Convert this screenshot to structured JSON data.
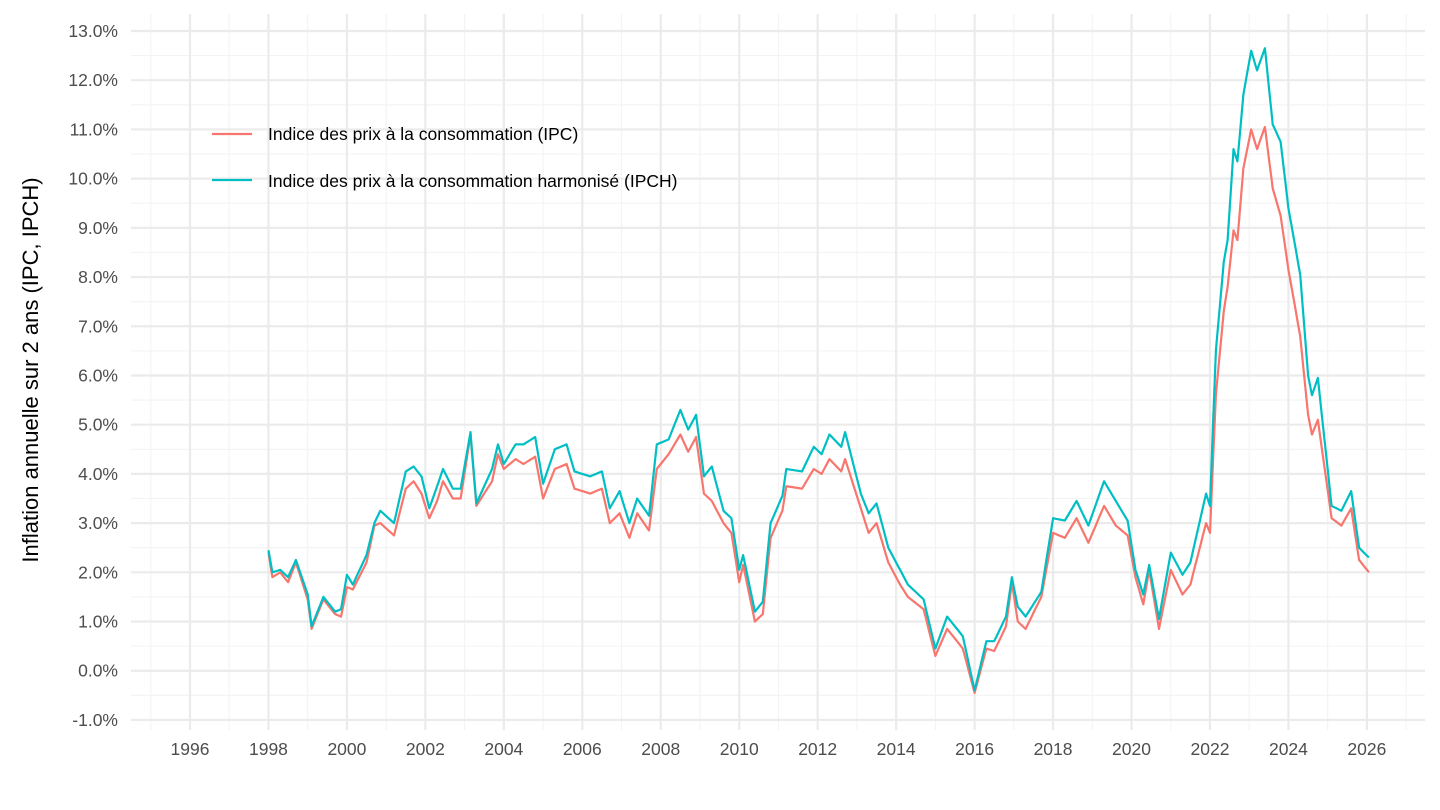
{
  "chart_data": {
    "type": "line",
    "title": "",
    "xlabel": "",
    "ylabel": "Inflation annuelle sur 2 ans (IPC, IPCH)",
    "xlim": [
      1994.5,
      2027.5
    ],
    "ylim": [
      -1.0,
      13.0
    ],
    "grid": true,
    "x_ticks": [
      "1996",
      "1998",
      "2000",
      "2002",
      "2004",
      "2006",
      "2008",
      "2010",
      "2012",
      "2014",
      "2016",
      "2018",
      "2020",
      "2022",
      "2024",
      "2026"
    ],
    "y_ticks": [
      "-1.0%",
      "0.0%",
      "1.0%",
      "2.0%",
      "3.0%",
      "4.0%",
      "5.0%",
      "6.0%",
      "7.0%",
      "8.0%",
      "9.0%",
      "10.0%",
      "11.0%",
      "12.0%",
      "13.0%"
    ],
    "legend_position": "top-left",
    "x_unit": "decimal year",
    "y_unit": "percent",
    "series": [
      {
        "name": "Indice des prix à la consommation (IPC)",
        "color": "#F8766D",
        "points": [
          [
            1998.0,
            2.4
          ],
          [
            1998.1,
            1.9
          ],
          [
            1998.3,
            2.0
          ],
          [
            1998.5,
            1.8
          ],
          [
            1998.7,
            2.2
          ],
          [
            1999.0,
            1.45
          ],
          [
            1999.1,
            0.85
          ],
          [
            1999.4,
            1.45
          ],
          [
            1999.7,
            1.15
          ],
          [
            1999.85,
            1.1
          ],
          [
            2000.0,
            1.7
          ],
          [
            2000.15,
            1.65
          ],
          [
            2000.5,
            2.2
          ],
          [
            2000.7,
            2.95
          ],
          [
            2000.85,
            3.0
          ],
          [
            2001.2,
            2.75
          ],
          [
            2001.5,
            3.7
          ],
          [
            2001.7,
            3.85
          ],
          [
            2001.9,
            3.6
          ],
          [
            2002.1,
            3.1
          ],
          [
            2002.3,
            3.45
          ],
          [
            2002.45,
            3.85
          ],
          [
            2002.7,
            3.5
          ],
          [
            2002.9,
            3.5
          ],
          [
            2003.15,
            4.8
          ],
          [
            2003.3,
            3.35
          ],
          [
            2003.7,
            3.85
          ],
          [
            2003.85,
            4.4
          ],
          [
            2004.0,
            4.1
          ],
          [
            2004.3,
            4.3
          ],
          [
            2004.5,
            4.2
          ],
          [
            2004.8,
            4.35
          ],
          [
            2005.0,
            3.5
          ],
          [
            2005.3,
            4.1
          ],
          [
            2005.6,
            4.2
          ],
          [
            2005.8,
            3.7
          ],
          [
            2006.2,
            3.6
          ],
          [
            2006.5,
            3.7
          ],
          [
            2006.7,
            3.0
          ],
          [
            2006.95,
            3.2
          ],
          [
            2007.2,
            2.7
          ],
          [
            2007.4,
            3.2
          ],
          [
            2007.7,
            2.85
          ],
          [
            2007.9,
            4.1
          ],
          [
            2008.2,
            4.4
          ],
          [
            2008.5,
            4.8
          ],
          [
            2008.7,
            4.45
          ],
          [
            2008.9,
            4.75
          ],
          [
            2009.1,
            3.6
          ],
          [
            2009.3,
            3.45
          ],
          [
            2009.6,
            3.0
          ],
          [
            2009.8,
            2.8
          ],
          [
            2010.0,
            1.8
          ],
          [
            2010.1,
            2.15
          ],
          [
            2010.4,
            1.0
          ],
          [
            2010.6,
            1.15
          ],
          [
            2010.8,
            2.7
          ],
          [
            2011.1,
            3.25
          ],
          [
            2011.2,
            3.75
          ],
          [
            2011.6,
            3.7
          ],
          [
            2011.9,
            4.1
          ],
          [
            2012.1,
            4.0
          ],
          [
            2012.3,
            4.3
          ],
          [
            2012.6,
            4.05
          ],
          [
            2012.7,
            4.3
          ],
          [
            2013.1,
            3.3
          ],
          [
            2013.3,
            2.8
          ],
          [
            2013.5,
            3.0
          ],
          [
            2013.8,
            2.2
          ],
          [
            2014.1,
            1.75
          ],
          [
            2014.3,
            1.5
          ],
          [
            2014.7,
            1.25
          ],
          [
            2015.0,
            0.3
          ],
          [
            2015.3,
            0.85
          ],
          [
            2015.7,
            0.45
          ],
          [
            2016.0,
            -0.45
          ],
          [
            2016.3,
            0.45
          ],
          [
            2016.5,
            0.4
          ],
          [
            2016.8,
            0.9
          ],
          [
            2016.95,
            1.8
          ],
          [
            2017.1,
            1.0
          ],
          [
            2017.3,
            0.85
          ],
          [
            2017.7,
            1.5
          ],
          [
            2018.0,
            2.8
          ],
          [
            2018.3,
            2.7
          ],
          [
            2018.6,
            3.1
          ],
          [
            2018.9,
            2.6
          ],
          [
            2019.3,
            3.35
          ],
          [
            2019.6,
            2.95
          ],
          [
            2019.9,
            2.75
          ],
          [
            2020.1,
            1.9
          ],
          [
            2020.3,
            1.35
          ],
          [
            2020.45,
            2.05
          ],
          [
            2020.7,
            0.85
          ],
          [
            2021.0,
            2.05
          ],
          [
            2021.3,
            1.55
          ],
          [
            2021.5,
            1.75
          ],
          [
            2021.9,
            3.0
          ],
          [
            2022.0,
            2.8
          ],
          [
            2022.15,
            5.6
          ],
          [
            2022.35,
            7.3
          ],
          [
            2022.45,
            7.8
          ],
          [
            2022.6,
            8.95
          ],
          [
            2022.7,
            8.75
          ],
          [
            2022.85,
            10.2
          ],
          [
            2023.05,
            11.0
          ],
          [
            2023.2,
            10.6
          ],
          [
            2023.4,
            11.05
          ],
          [
            2023.6,
            9.8
          ],
          [
            2023.8,
            9.25
          ],
          [
            2024.0,
            8.15
          ],
          [
            2024.3,
            6.8
          ],
          [
            2024.5,
            5.2
          ],
          [
            2024.6,
            4.8
          ],
          [
            2024.75,
            5.1
          ],
          [
            2025.1,
            3.1
          ],
          [
            2025.35,
            2.95
          ],
          [
            2025.6,
            3.3
          ],
          [
            2025.8,
            2.25
          ],
          [
            2026.05,
            2.0
          ]
        ]
      },
      {
        "name": "Indice des prix à la consommation harmonisé (IPCH)",
        "color": "#00BFC4",
        "points": [
          [
            1998.0,
            2.45
          ],
          [
            1998.1,
            2.0
          ],
          [
            1998.3,
            2.05
          ],
          [
            1998.5,
            1.9
          ],
          [
            1998.7,
            2.25
          ],
          [
            1999.0,
            1.55
          ],
          [
            1999.1,
            0.9
          ],
          [
            1999.4,
            1.5
          ],
          [
            1999.7,
            1.2
          ],
          [
            1999.85,
            1.25
          ],
          [
            2000.0,
            1.95
          ],
          [
            2000.15,
            1.75
          ],
          [
            2000.5,
            2.35
          ],
          [
            2000.7,
            3.0
          ],
          [
            2000.85,
            3.25
          ],
          [
            2001.2,
            3.0
          ],
          [
            2001.5,
            4.05
          ],
          [
            2001.7,
            4.15
          ],
          [
            2001.9,
            3.95
          ],
          [
            2002.1,
            3.3
          ],
          [
            2002.3,
            3.75
          ],
          [
            2002.45,
            4.1
          ],
          [
            2002.7,
            3.7
          ],
          [
            2002.9,
            3.7
          ],
          [
            2003.15,
            4.85
          ],
          [
            2003.3,
            3.4
          ],
          [
            2003.7,
            4.1
          ],
          [
            2003.85,
            4.6
          ],
          [
            2004.0,
            4.2
          ],
          [
            2004.3,
            4.6
          ],
          [
            2004.5,
            4.6
          ],
          [
            2004.8,
            4.75
          ],
          [
            2005.0,
            3.8
          ],
          [
            2005.3,
            4.5
          ],
          [
            2005.6,
            4.6
          ],
          [
            2005.8,
            4.05
          ],
          [
            2006.2,
            3.95
          ],
          [
            2006.5,
            4.05
          ],
          [
            2006.7,
            3.3
          ],
          [
            2006.95,
            3.65
          ],
          [
            2007.2,
            3.0
          ],
          [
            2007.4,
            3.5
          ],
          [
            2007.7,
            3.15
          ],
          [
            2007.9,
            4.6
          ],
          [
            2008.2,
            4.7
          ],
          [
            2008.5,
            5.3
          ],
          [
            2008.7,
            4.9
          ],
          [
            2008.9,
            5.2
          ],
          [
            2009.1,
            3.95
          ],
          [
            2009.3,
            4.15
          ],
          [
            2009.6,
            3.25
          ],
          [
            2009.8,
            3.1
          ],
          [
            2010.0,
            2.05
          ],
          [
            2010.1,
            2.35
          ],
          [
            2010.4,
            1.2
          ],
          [
            2010.6,
            1.4
          ],
          [
            2010.8,
            3.0
          ],
          [
            2011.1,
            3.55
          ],
          [
            2011.2,
            4.1
          ],
          [
            2011.6,
            4.05
          ],
          [
            2011.9,
            4.55
          ],
          [
            2012.1,
            4.4
          ],
          [
            2012.3,
            4.8
          ],
          [
            2012.6,
            4.55
          ],
          [
            2012.7,
            4.85
          ],
          [
            2013.1,
            3.6
          ],
          [
            2013.3,
            3.2
          ],
          [
            2013.5,
            3.4
          ],
          [
            2013.8,
            2.5
          ],
          [
            2014.1,
            2.05
          ],
          [
            2014.3,
            1.75
          ],
          [
            2014.7,
            1.45
          ],
          [
            2015.0,
            0.45
          ],
          [
            2015.3,
            1.1
          ],
          [
            2015.7,
            0.7
          ],
          [
            2016.0,
            -0.4
          ],
          [
            2016.3,
            0.6
          ],
          [
            2016.5,
            0.6
          ],
          [
            2016.8,
            1.1
          ],
          [
            2016.95,
            1.9
          ],
          [
            2017.1,
            1.3
          ],
          [
            2017.3,
            1.1
          ],
          [
            2017.7,
            1.6
          ],
          [
            2018.0,
            3.1
          ],
          [
            2018.3,
            3.05
          ],
          [
            2018.6,
            3.45
          ],
          [
            2018.9,
            2.95
          ],
          [
            2019.3,
            3.85
          ],
          [
            2019.6,
            3.45
          ],
          [
            2019.9,
            3.05
          ],
          [
            2020.1,
            2.05
          ],
          [
            2020.3,
            1.55
          ],
          [
            2020.45,
            2.15
          ],
          [
            2020.7,
            1.05
          ],
          [
            2021.0,
            2.4
          ],
          [
            2021.3,
            1.95
          ],
          [
            2021.5,
            2.2
          ],
          [
            2021.9,
            3.6
          ],
          [
            2022.0,
            3.35
          ],
          [
            2022.15,
            6.5
          ],
          [
            2022.35,
            8.3
          ],
          [
            2022.45,
            8.75
          ],
          [
            2022.6,
            10.6
          ],
          [
            2022.7,
            10.35
          ],
          [
            2022.85,
            11.7
          ],
          [
            2023.05,
            12.6
          ],
          [
            2023.2,
            12.2
          ],
          [
            2023.4,
            12.65
          ],
          [
            2023.6,
            11.1
          ],
          [
            2023.8,
            10.75
          ],
          [
            2024.0,
            9.4
          ],
          [
            2024.3,
            8.05
          ],
          [
            2024.5,
            6.0
          ],
          [
            2024.6,
            5.6
          ],
          [
            2024.75,
            5.95
          ],
          [
            2025.1,
            3.35
          ],
          [
            2025.35,
            3.25
          ],
          [
            2025.6,
            3.65
          ],
          [
            2025.8,
            2.5
          ],
          [
            2026.05,
            2.3
          ]
        ]
      }
    ]
  }
}
